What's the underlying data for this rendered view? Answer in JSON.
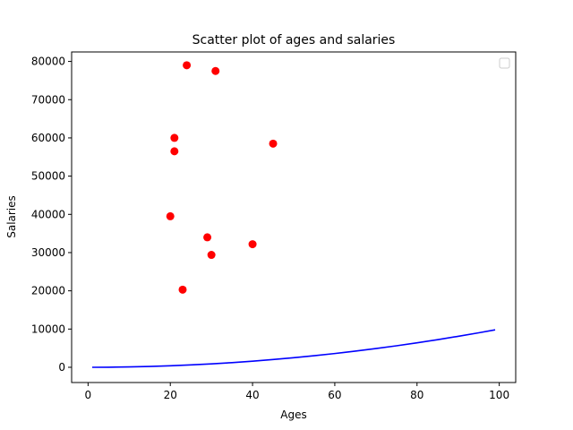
{
  "chart_data": {
    "type": "scatter",
    "title": "Scatter plot of ages and salaries",
    "xlabel": "Ages",
    "ylabel": "Salaries",
    "xlim": [
      -4,
      104
    ],
    "ylim": [
      -3985,
      82480
    ],
    "xticks": [
      0,
      20,
      40,
      60,
      80,
      100
    ],
    "yticks": [
      0,
      10000,
      20000,
      30000,
      40000,
      50000,
      60000,
      70000,
      80000
    ],
    "grid": false,
    "legend": {
      "placement": "top-right",
      "entries": []
    },
    "series": [
      {
        "type": "scatter",
        "color": "#ff0000",
        "x": [
          24,
          31,
          21,
          21,
          45,
          20,
          29,
          40,
          30,
          23
        ],
        "y": [
          79000,
          77500,
          60000,
          56500,
          58500,
          39500,
          34000,
          32200,
          29400,
          20300
        ]
      },
      {
        "type": "line",
        "color": "#0000ff",
        "x": [
          1,
          5,
          10,
          15,
          20,
          25,
          30,
          35,
          40,
          45,
          50,
          55,
          60,
          65,
          70,
          75,
          80,
          85,
          90,
          95,
          99
        ],
        "y": [
          1,
          25,
          100,
          225,
          400,
          625,
          900,
          1225,
          1600,
          2025,
          2500,
          3025,
          3600,
          4225,
          4900,
          5625,
          6400,
          7225,
          8100,
          9025,
          9801
        ]
      }
    ]
  }
}
